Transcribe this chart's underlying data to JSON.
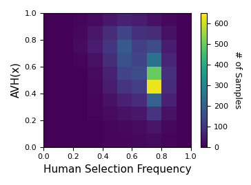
{
  "xlabel": "Human Selection Frequency",
  "ylabel": "AVH(x)",
  "colorbar_label": "# of Samples",
  "xlim": [
    0.0,
    1.0
  ],
  "ylim": [
    0.0,
    1.0
  ],
  "xticks": [
    0.0,
    0.2,
    0.4,
    0.6,
    0.8,
    1.0
  ],
  "yticks": [
    0.0,
    0.2,
    0.4,
    0.6,
    0.8,
    1.0
  ],
  "colorbar_ticks": [
    0,
    100,
    200,
    300,
    400,
    500,
    600
  ],
  "vmax": 650,
  "nbins": 10,
  "cmap": "viridis",
  "figsize": [
    3.64,
    2.69
  ],
  "dpi": 100,
  "hist2d_yx": [
    [
      5,
      5,
      5,
      5,
      8,
      12,
      15,
      20,
      10,
      5
    ],
    [
      5,
      5,
      5,
      5,
      10,
      15,
      20,
      35,
      15,
      5
    ],
    [
      5,
      5,
      5,
      8,
      20,
      30,
      40,
      100,
      30,
      5
    ],
    [
      5,
      5,
      5,
      10,
      30,
      60,
      80,
      200,
      60,
      5
    ],
    [
      5,
      5,
      5,
      15,
      50,
      100,
      120,
      630,
      80,
      5
    ],
    [
      5,
      5,
      5,
      20,
      60,
      130,
      150,
      500,
      90,
      5
    ],
    [
      5,
      5,
      10,
      30,
      80,
      160,
      130,
      250,
      70,
      5
    ],
    [
      5,
      5,
      20,
      50,
      100,
      180,
      120,
      150,
      50,
      5
    ],
    [
      5,
      5,
      15,
      40,
      80,
      130,
      90,
      80,
      30,
      5
    ],
    [
      5,
      5,
      8,
      20,
      40,
      60,
      50,
      30,
      15,
      5
    ]
  ],
  "xlabel_fontsize": 11,
  "ylabel_fontsize": 11,
  "colorbar_label_fontsize": 9,
  "tick_fontsize": 8
}
